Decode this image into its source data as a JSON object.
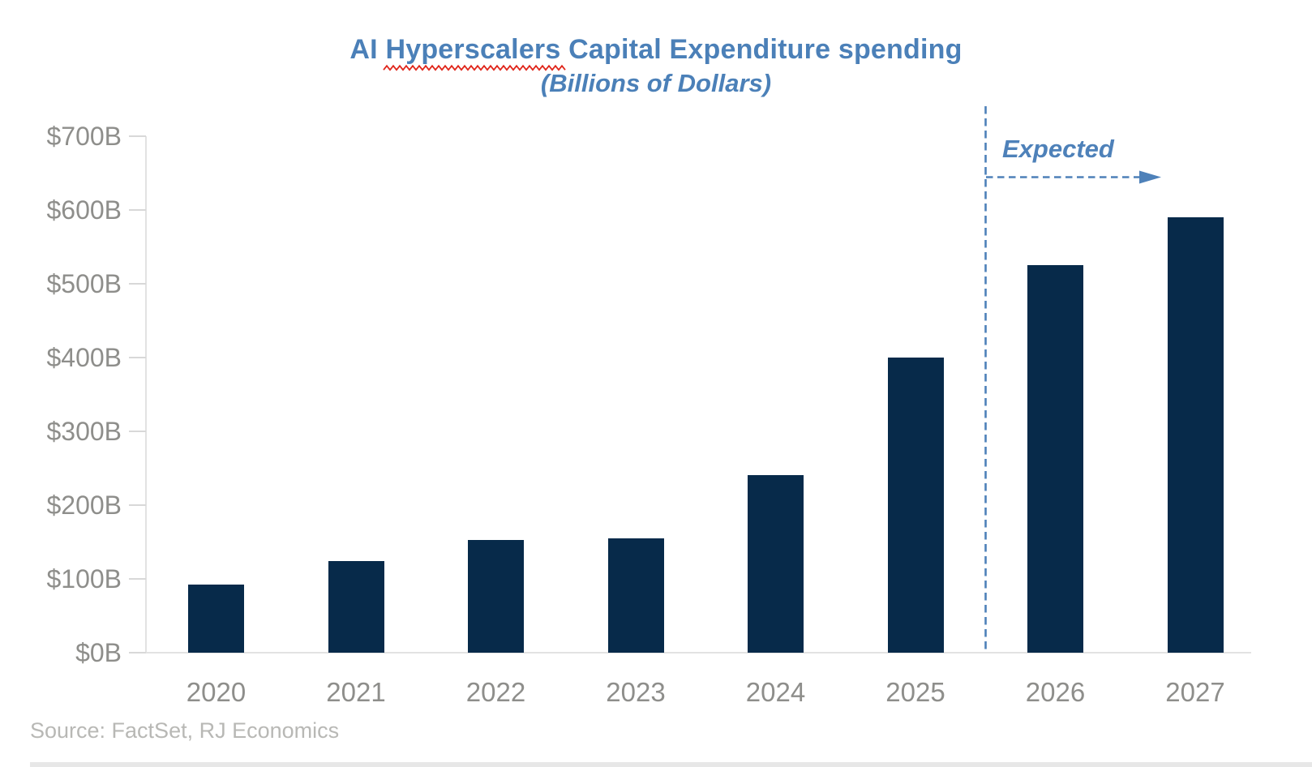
{
  "header": {
    "title_prefix": "AI ",
    "title_misspelled_word": "Hyperscalers",
    "title_suffix": " Capital Expenditure spending",
    "subtitle": "(Billions of Dollars)"
  },
  "annotation": {
    "expected_label": "Expected"
  },
  "source": {
    "text": "Source: FactSet, RJ Economics"
  },
  "chart_data": {
    "type": "bar",
    "title": "AI Hyperscalers Capital Expenditure spending",
    "subtitle": "(Billions of Dollars)",
    "categories": [
      "2020",
      "2021",
      "2022",
      "2023",
      "2024",
      "2025",
      "2026",
      "2027"
    ],
    "values": [
      92,
      124,
      153,
      155,
      241,
      400,
      525,
      590
    ],
    "unit": "billions of dollars",
    "ylim": [
      0,
      700
    ],
    "ytick_step": 100,
    "ytick_labels": [
      "$0B",
      "$100B",
      "$200B",
      "$300B",
      "$400B",
      "$500B",
      "$600B",
      "$700B"
    ],
    "gridlines": "none",
    "legend": "none",
    "annotations": {
      "expected_divider_before_category": "2026",
      "expected_label": "Expected",
      "expected_categories": [
        "2026",
        "2027"
      ]
    }
  },
  "style": {
    "bar_color": "#072A4A",
    "title_color": "#4B80B8",
    "annotation_blue": "#4E81B9",
    "axis_label_color": "#8E8E8B",
    "source_color": "#B8B8B5",
    "axis_line_color": "#E2E2E2",
    "tick_color": "#D8D8D8",
    "squiggle_red": "#E0261B",
    "bottom_band_color": "#E7E7E7"
  }
}
